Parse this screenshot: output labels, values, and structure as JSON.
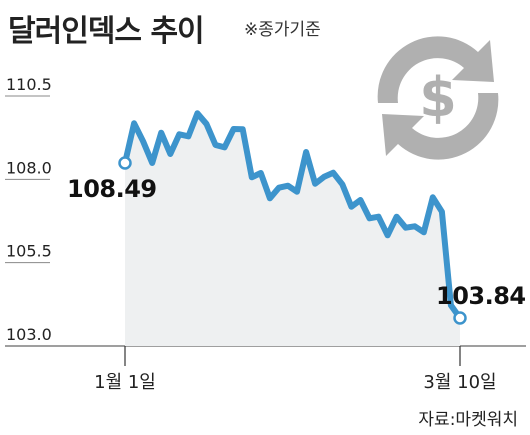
{
  "header": {
    "title": "달러인덱스 추이",
    "subtitle": "※종가기준"
  },
  "source": "자료:마켓워치",
  "icon": {
    "name": "dollar-exchange-icon",
    "color": "#b0b0b0"
  },
  "colors": {
    "line": "#3d94cc",
    "area": "#eef0f1",
    "marker_fill": "#ffffff"
  },
  "chart_data": {
    "type": "area",
    "ylim": [
      103.0,
      110.5
    ],
    "yticks": [
      "110.5",
      "108.0",
      "105.5",
      "103.0"
    ],
    "x_tick_labels": [
      "1월 1일",
      "3월 10일"
    ],
    "start_label": "108.49",
    "end_label": "103.84",
    "values": [
      108.49,
      109.68,
      109.14,
      108.49,
      109.4,
      108.76,
      109.35,
      109.29,
      109.98,
      109.66,
      109.03,
      108.96,
      109.51,
      109.5,
      108.06,
      108.19,
      107.43,
      107.75,
      107.81,
      107.63,
      108.82,
      107.87,
      108.08,
      108.2,
      107.85,
      107.18,
      107.38,
      106.83,
      106.88,
      106.32,
      106.88,
      106.55,
      106.59,
      106.41,
      107.46,
      107.03,
      104.22,
      103.84
    ]
  }
}
